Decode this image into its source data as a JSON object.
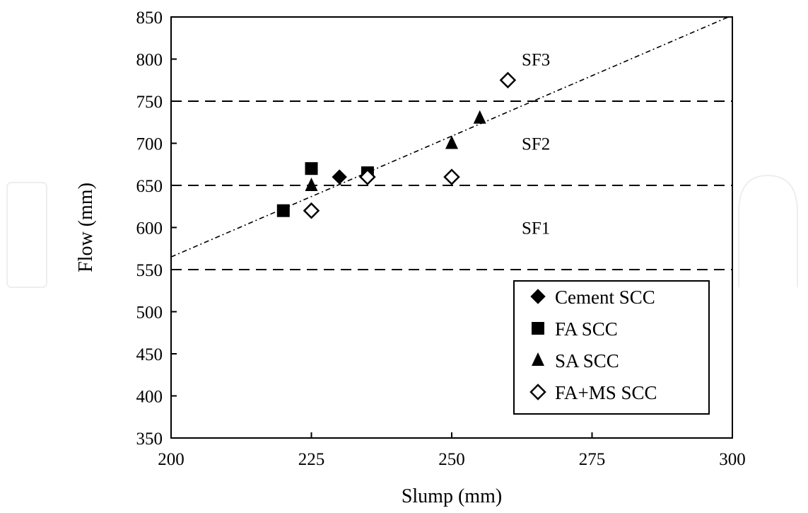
{
  "chart_data": {
    "type": "scatter",
    "title": "",
    "xlabel": "Slump (mm)",
    "ylabel": "Flow (mm)",
    "xlim": [
      200,
      300
    ],
    "ylim": [
      350,
      850
    ],
    "xticks": [
      200,
      225,
      250,
      275,
      300
    ],
    "yticks": [
      350,
      400,
      450,
      500,
      550,
      600,
      650,
      700,
      750,
      800,
      850
    ],
    "grid": false,
    "legend_position": "bottom-right",
    "series": [
      {
        "name": "Cement SCC",
        "marker": "diamond-filled",
        "color": "#000000",
        "points": [
          {
            "x": 230,
            "y": 660
          }
        ]
      },
      {
        "name": "FA SCC",
        "marker": "square-filled",
        "color": "#000000",
        "points": [
          {
            "x": 220,
            "y": 620
          },
          {
            "x": 225,
            "y": 670
          },
          {
            "x": 235,
            "y": 665
          }
        ]
      },
      {
        "name": "SA SCC",
        "marker": "triangle-filled",
        "color": "#000000",
        "points": [
          {
            "x": 225,
            "y": 650
          },
          {
            "x": 250,
            "y": 700
          },
          {
            "x": 255,
            "y": 730
          }
        ]
      },
      {
        "name": "FA+MS SCC",
        "marker": "diamond-open",
        "color": "#000000",
        "points": [
          {
            "x": 225,
            "y": 620
          },
          {
            "x": 235,
            "y": 660
          },
          {
            "x": 250,
            "y": 660
          },
          {
            "x": 260,
            "y": 775
          }
        ]
      }
    ],
    "reference_lines": [
      {
        "axis": "y",
        "value": 550,
        "style": "dashed"
      },
      {
        "axis": "y",
        "value": 650,
        "style": "dashed"
      },
      {
        "axis": "y",
        "value": 750,
        "style": "dashed"
      }
    ],
    "zone_labels": [
      {
        "text": "SF1",
        "x": 265,
        "y": 600
      },
      {
        "text": "SF2",
        "x": 265,
        "y": 700
      },
      {
        "text": "SF3",
        "x": 265,
        "y": 800
      }
    ],
    "trend_line": {
      "style": "dash-dot",
      "from": {
        "x": 200,
        "y": 565
      },
      "to": {
        "x": 300,
        "y": 852
      }
    }
  }
}
